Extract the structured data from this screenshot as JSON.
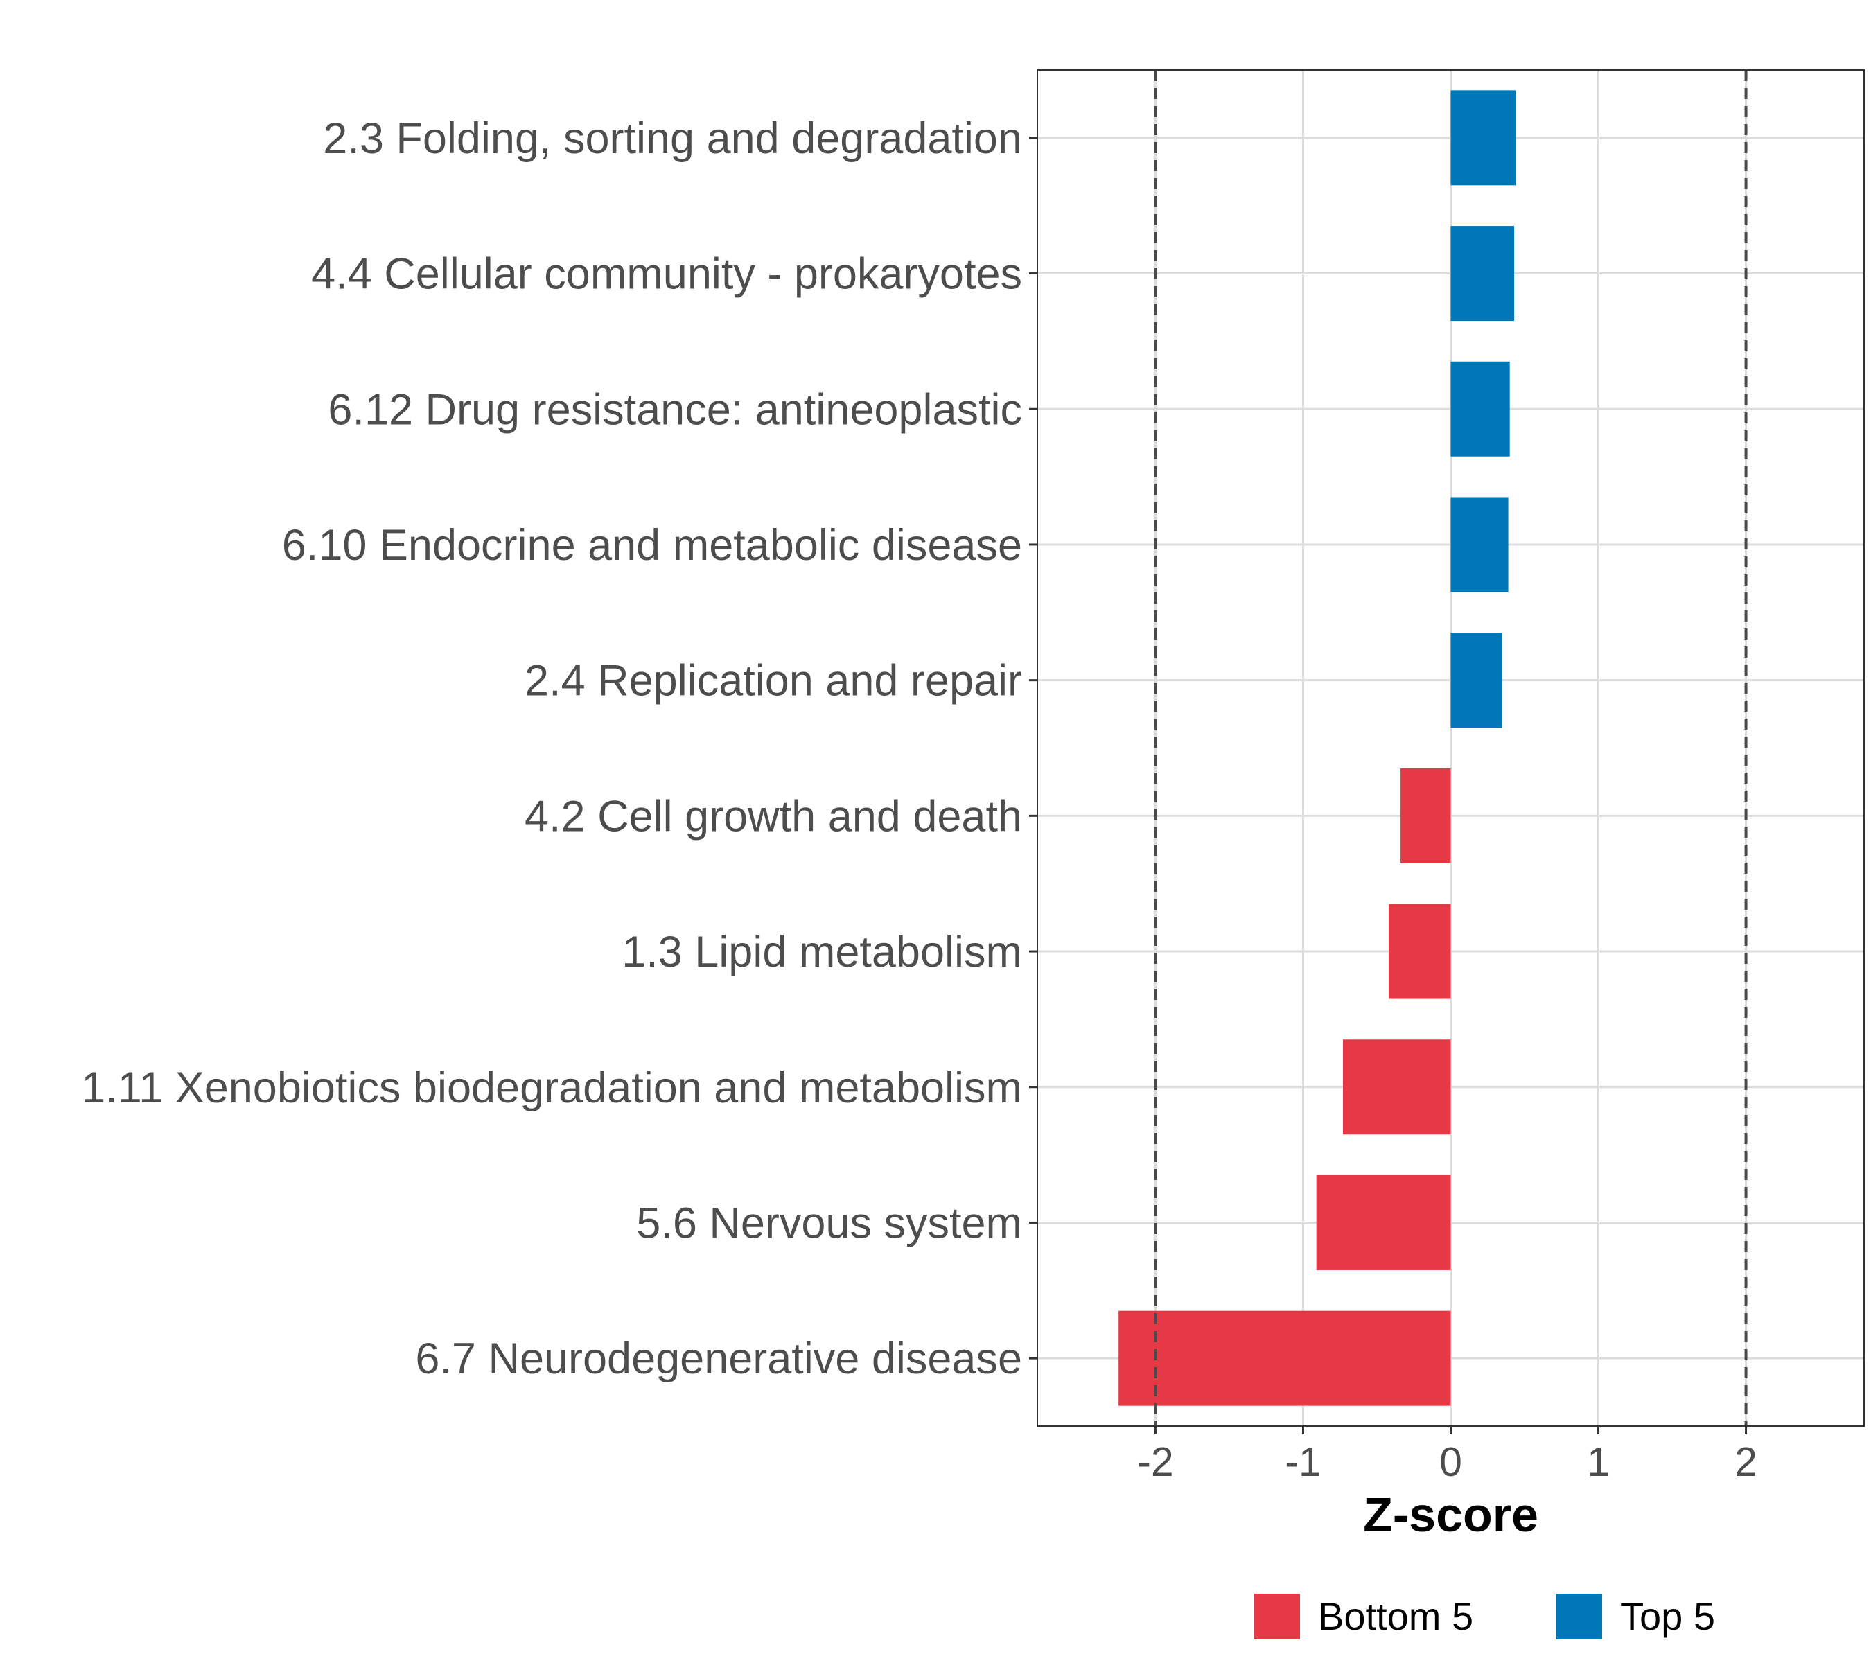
{
  "chart_data": {
    "type": "bar",
    "orientation": "horizontal",
    "title": "",
    "xlabel": "Z-score",
    "ylabel": "",
    "xlim": [
      -2.8,
      2.8
    ],
    "xticks": [
      -2,
      -1,
      0,
      1,
      2
    ],
    "xtick_labels": [
      "-2",
      "-1",
      "0",
      "1",
      "2"
    ],
    "reference_lines": [
      -2,
      2
    ],
    "grid": true,
    "categories": [
      "2.3 Folding, sorting and degradation",
      "4.4 Cellular community - prokaryotes",
      "6.12 Drug resistance: antineoplastic",
      "6.10 Endocrine and metabolic disease",
      "2.4 Replication and repair",
      "4.2 Cell growth and death",
      "1.3 Lipid metabolism",
      "1.11 Xenobiotics biodegradation and metabolism",
      "5.6 Nervous system",
      "6.7 Neurodegenerative disease"
    ],
    "values": [
      0.44,
      0.43,
      0.4,
      0.39,
      0.35,
      -0.34,
      -0.42,
      -0.73,
      -0.91,
      -2.25
    ],
    "groups": [
      "Top 5",
      "Top 5",
      "Top 5",
      "Top 5",
      "Top 5",
      "Bottom 5",
      "Bottom 5",
      "Bottom 5",
      "Bottom 5",
      "Bottom 5"
    ],
    "legend": {
      "position": "bottom",
      "entries": [
        {
          "label": "Bottom 5",
          "color": "#e63946"
        },
        {
          "label": "Top 5",
          "color": "#0077b6"
        }
      ]
    },
    "colors": {
      "Bottom 5": "#e63946",
      "Top 5": "#0077b6"
    }
  }
}
